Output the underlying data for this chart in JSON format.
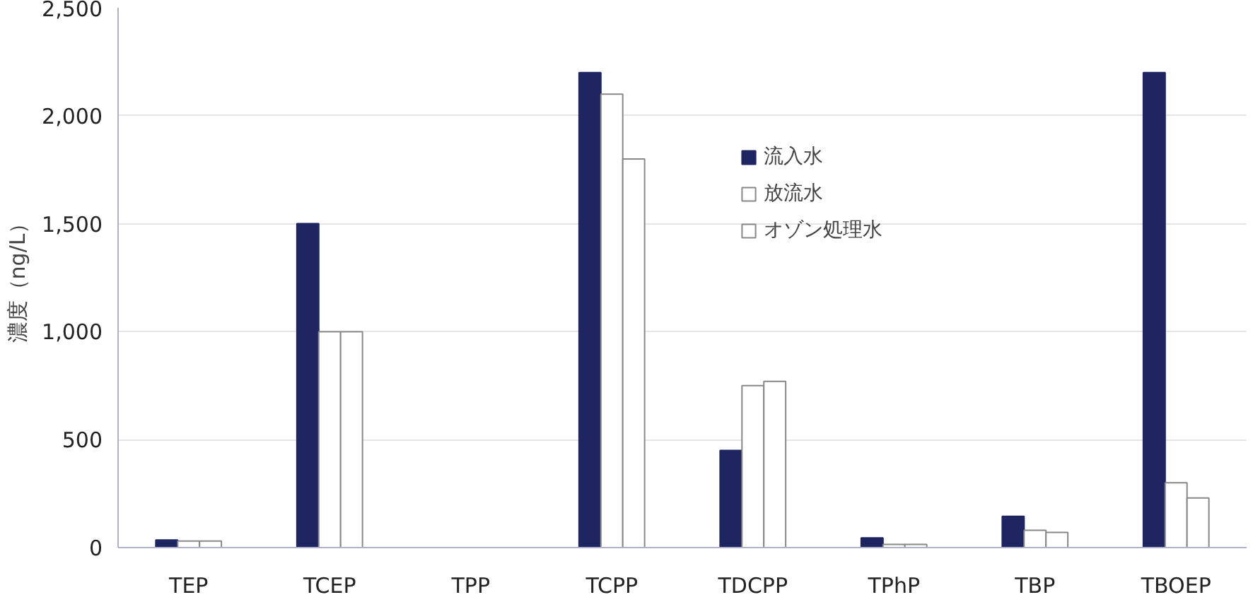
{
  "chart_data": {
    "type": "bar",
    "ylabel": "濃度（ng/L）",
    "categories": [
      "TEP",
      "TCEP",
      "TPP",
      "TCPP",
      "TDCPP",
      "TPhP",
      "TBP",
      "TBOEP"
    ],
    "series": [
      {
        "name": "流入水",
        "color": "#1f2560",
        "values": [
          35,
          1500,
          null,
          2200,
          450,
          45,
          145,
          2200
        ]
      },
      {
        "name": "放流水",
        "color": "#ffffff",
        "values": [
          30,
          1000,
          null,
          2100,
          750,
          15,
          80,
          300
        ]
      },
      {
        "name": "オゾン処理水",
        "color": "#ffffff",
        "values": [
          30,
          1000,
          null,
          1800,
          770,
          15,
          70,
          230
        ]
      }
    ],
    "ylim": [
      0,
      2500
    ],
    "yticks": [
      0,
      500,
      {
        "value": 1000,
        "label": "1,000"
      },
      {
        "value": 1500,
        "label": "1,500"
      },
      {
        "value": 2000,
        "label": "2,000"
      },
      {
        "value": 2500,
        "label": "2,500"
      }
    ],
    "grid": "y",
    "legend": "top"
  }
}
